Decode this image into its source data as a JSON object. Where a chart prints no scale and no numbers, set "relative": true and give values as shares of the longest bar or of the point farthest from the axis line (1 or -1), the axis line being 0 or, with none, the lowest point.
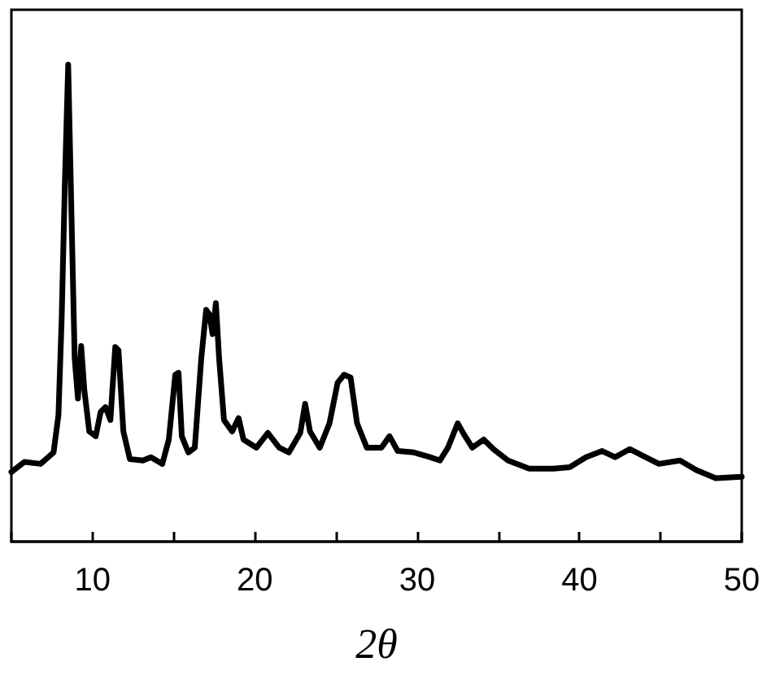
{
  "chart_data": {
    "type": "line",
    "xlabel": "2θ",
    "relative": true,
    "xlim": [
      5,
      50
    ],
    "xticks": [
      {
        "value": 5,
        "label": null
      },
      10,
      {
        "value": 15,
        "label": null
      },
      20,
      {
        "value": 25,
        "label": null
      },
      30,
      {
        "value": 35,
        "label": null
      },
      40,
      {
        "value": 45,
        "label": null
      },
      50
    ],
    "marker": "none",
    "line_style": "solid",
    "series": [
      {
        "color": "#000000",
        "x": [
          5,
          5.8,
          6.8,
          7.6,
          7.9,
          8.1,
          8.3,
          8.5,
          8.7,
          8.9,
          9.1,
          9.3,
          9.5,
          9.8,
          10.2,
          10.5,
          10.8,
          11.1,
          11.4,
          11.6,
          11.9,
          12.3,
          13.1,
          13.6,
          14.3,
          14.7,
          15.1,
          15.3,
          15.5,
          15.9,
          16.3,
          16.7,
          17.0,
          17.2,
          17.4,
          17.6,
          17.8,
          18.1,
          18.6,
          19.0,
          19.3,
          20.1,
          20.8,
          21.5,
          22.1,
          22.8,
          23.1,
          23.4,
          24.0,
          24.6,
          25.1,
          25.5,
          25.9,
          26.3,
          26.9,
          27.8,
          28.3,
          28.8,
          29.8,
          30.8,
          31.4,
          31.9,
          32.5,
          32.9,
          33.4,
          34.1,
          34.7,
          35.6,
          36.9,
          38.4,
          39.4,
          40.4,
          41.4,
          42.2,
          43.1,
          43.9,
          44.9,
          46.2,
          47.2,
          48.4,
          50
        ],
        "values": [
          0.146,
          0.167,
          0.163,
          0.187,
          0.265,
          0.469,
          0.759,
          1.0,
          0.69,
          0.384,
          0.3,
          0.41,
          0.316,
          0.231,
          0.221,
          0.272,
          0.282,
          0.255,
          0.408,
          0.401,
          0.231,
          0.173,
          0.17,
          0.177,
          0.163,
          0.214,
          0.35,
          0.354,
          0.221,
          0.187,
          0.197,
          0.384,
          0.486,
          0.476,
          0.435,
          0.5,
          0.384,
          0.255,
          0.231,
          0.259,
          0.214,
          0.197,
          0.228,
          0.197,
          0.187,
          0.228,
          0.289,
          0.231,
          0.197,
          0.248,
          0.333,
          0.35,
          0.344,
          0.248,
          0.197,
          0.197,
          0.221,
          0.19,
          0.187,
          0.177,
          0.17,
          0.197,
          0.248,
          0.224,
          0.197,
          0.214,
          0.194,
          0.17,
          0.153,
          0.153,
          0.156,
          0.177,
          0.19,
          0.177,
          0.194,
          0.18,
          0.163,
          0.17,
          0.15,
          0.133,
          0.136
        ]
      }
    ]
  }
}
